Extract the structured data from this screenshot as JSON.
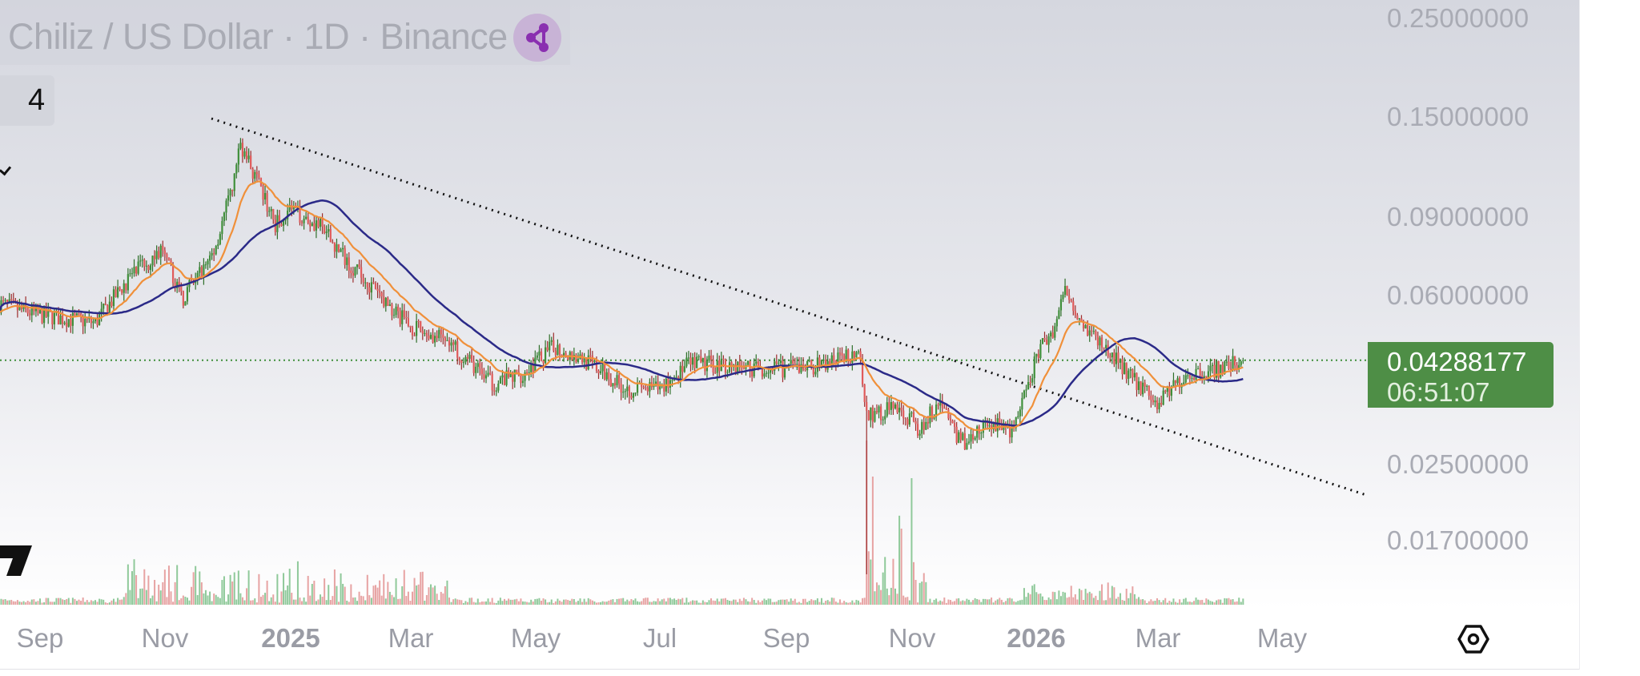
{
  "header": {
    "title": "Chiliz / US Dollar · 1D · Binance",
    "share_icon": "share-icon",
    "indicator_count": "4"
  },
  "price_axis": {
    "ticks": [
      "0.25000000",
      "0.15000000",
      "0.09000000",
      "0.06000000",
      "0.02500000",
      "0.01700000"
    ]
  },
  "current": {
    "price": "0.04288177",
    "countdown": "06:51:07",
    "color": "#4e8e46"
  },
  "time_axis": {
    "labels": [
      "Sep",
      "Nov",
      "2025",
      "Mar",
      "May",
      "Jul",
      "Sep",
      "Nov",
      "2026",
      "Mar",
      "May"
    ]
  },
  "colors": {
    "up": "#3f8f3a",
    "down": "#e05a5a",
    "ema_fast": "#f0903a",
    "ma_slow": "#2b2a88",
    "trendline": "#111111"
  },
  "chart_data": {
    "type": "candlestick",
    "title": "Chiliz / US Dollar · 1D · Binance",
    "scale": "log",
    "ylim": [
      0.014,
      0.27
    ],
    "xlim": [
      "2024-08-12",
      "2026-05-15"
    ],
    "grid": false,
    "current_price": 0.04288177,
    "close_path": [
      {
        "date": "2024-08-12",
        "close": 0.0573
      },
      {
        "date": "2024-09-01",
        "close": 0.054
      },
      {
        "date": "2024-09-28",
        "close": 0.052
      },
      {
        "date": "2024-10-15",
        "close": 0.066
      },
      {
        "date": "2024-10-30",
        "close": 0.075
      },
      {
        "date": "2024-11-10",
        "close": 0.059
      },
      {
        "date": "2024-11-25",
        "close": 0.075
      },
      {
        "date": "2024-12-04",
        "close": 0.104
      },
      {
        "date": "2024-12-08",
        "close": 0.13
      },
      {
        "date": "2024-12-15",
        "close": 0.11
      },
      {
        "date": "2024-12-25",
        "close": 0.086
      },
      {
        "date": "2025-01-01",
        "close": 0.093
      },
      {
        "date": "2025-01-15",
        "close": 0.086
      },
      {
        "date": "2025-02-01",
        "close": 0.069
      },
      {
        "date": "2025-02-15",
        "close": 0.059
      },
      {
        "date": "2025-03-01",
        "close": 0.051
      },
      {
        "date": "2025-03-20",
        "close": 0.047
      },
      {
        "date": "2025-04-10",
        "close": 0.038
      },
      {
        "date": "2025-04-25",
        "close": 0.04
      },
      {
        "date": "2025-05-10",
        "close": 0.046
      },
      {
        "date": "2025-05-25",
        "close": 0.043
      },
      {
        "date": "2025-06-15",
        "close": 0.037
      },
      {
        "date": "2025-07-01",
        "close": 0.037
      },
      {
        "date": "2025-07-15",
        "close": 0.042
      },
      {
        "date": "2025-08-01",
        "close": 0.042
      },
      {
        "date": "2025-08-20",
        "close": 0.041
      },
      {
        "date": "2025-09-01",
        "close": 0.041
      },
      {
        "date": "2025-09-20",
        "close": 0.042
      },
      {
        "date": "2025-10-06",
        "close": 0.045
      },
      {
        "date": "2025-10-10",
        "close": 0.032
      },
      {
        "date": "2025-10-25",
        "close": 0.034
      },
      {
        "date": "2025-11-05",
        "close": 0.03
      },
      {
        "date": "2025-11-15",
        "close": 0.035
      },
      {
        "date": "2025-11-25",
        "close": 0.028
      },
      {
        "date": "2025-12-10",
        "close": 0.031
      },
      {
        "date": "2025-12-20",
        "close": 0.03
      },
      {
        "date": "2025-12-28",
        "close": 0.037
      },
      {
        "date": "2026-01-01",
        "close": 0.044
      },
      {
        "date": "2026-01-10",
        "close": 0.051
      },
      {
        "date": "2026-01-15",
        "close": 0.062
      },
      {
        "date": "2026-01-25",
        "close": 0.051
      },
      {
        "date": "2026-02-01",
        "close": 0.047
      },
      {
        "date": "2026-02-15",
        "close": 0.04
      },
      {
        "date": "2026-03-01",
        "close": 0.034
      },
      {
        "date": "2026-03-15",
        "close": 0.04
      },
      {
        "date": "2026-04-01",
        "close": 0.041
      },
      {
        "date": "2026-04-12",
        "close": 0.04288
      }
    ],
    "notable_low": {
      "date": "2025-10-10",
      "low": 0.0143
    },
    "trendline": [
      {
        "date": "2024-12-01",
        "price": 0.145
      },
      {
        "date": "2026-05-40",
        "price": 0.021
      }
    ],
    "indicators": [
      "EMA (fast, orange)",
      "MA (slow, navy)",
      "Volume"
    ]
  }
}
